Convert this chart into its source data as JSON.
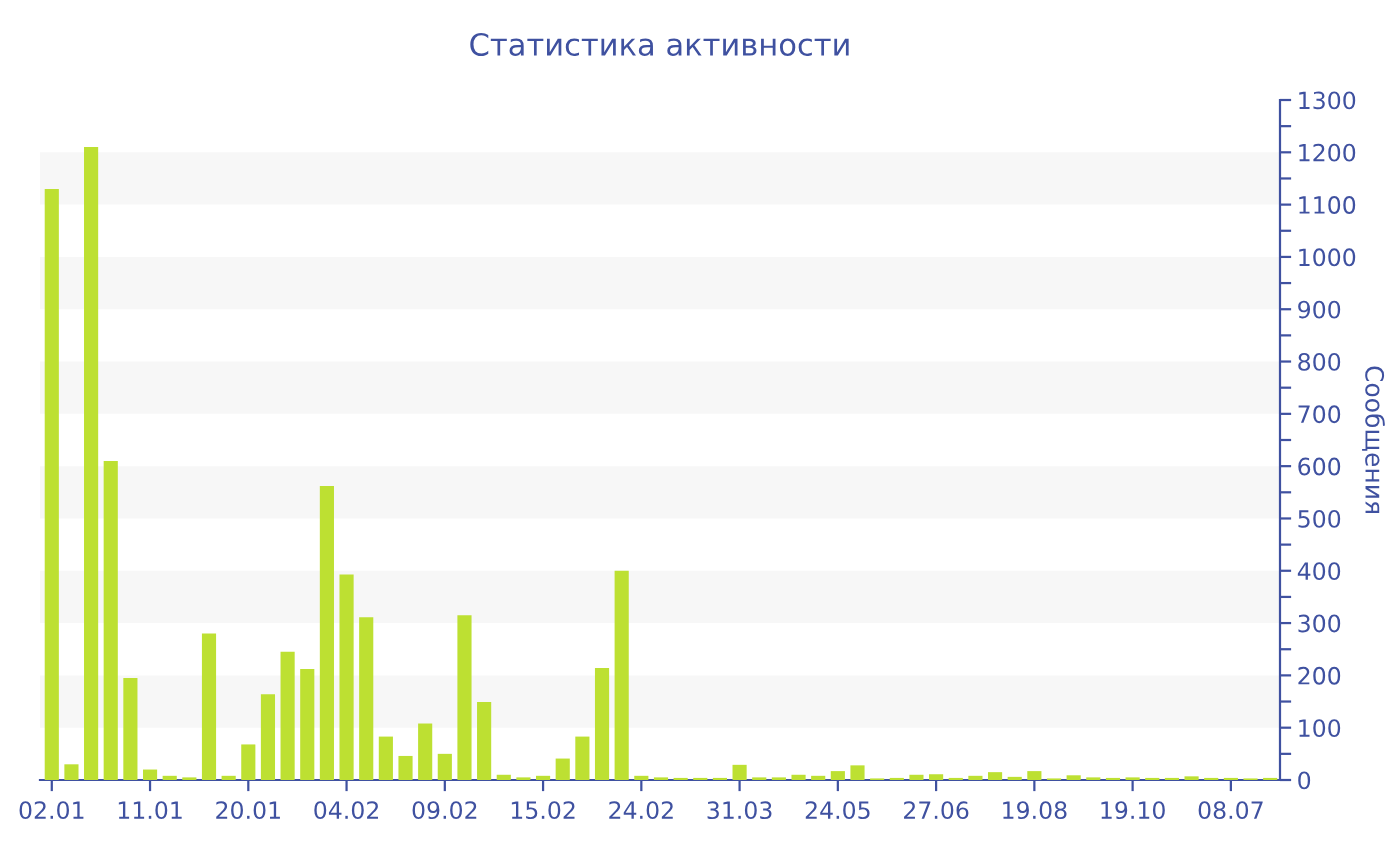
{
  "chart_data": {
    "type": "bar",
    "title": "Статистика активности",
    "ylabel": "Сообщения",
    "categories": [
      "02.01",
      null,
      null,
      null,
      null,
      "11.01",
      null,
      null,
      null,
      null,
      "20.01",
      null,
      null,
      null,
      null,
      "04.02",
      null,
      null,
      null,
      null,
      "09.02",
      null,
      null,
      null,
      null,
      "15.02",
      null,
      null,
      null,
      null,
      "24.02",
      null,
      null,
      null,
      null,
      "31.03",
      null,
      null,
      null,
      null,
      "24.05",
      null,
      null,
      null,
      null,
      "27.06",
      null,
      null,
      null,
      null,
      "19.08",
      null,
      null,
      null,
      null,
      "19.10",
      null,
      null,
      null,
      null,
      "08.07",
      null,
      null
    ],
    "values": [
      1130,
      30,
      1210,
      610,
      195,
      20,
      8,
      5,
      280,
      8,
      68,
      164,
      245,
      212,
      562,
      393,
      311,
      83,
      46,
      108,
      50,
      315,
      149,
      10,
      5,
      8,
      41,
      83,
      214,
      400,
      8,
      5,
      4,
      4,
      4,
      29,
      5,
      5,
      10,
      8,
      17,
      28,
      3,
      4,
      10,
      11,
      4,
      8,
      15,
      6,
      17,
      3,
      9,
      5,
      4,
      5,
      4,
      4,
      7,
      4,
      4,
      3,
      4
    ],
    "color": "#bde032",
    "ylim": [
      0,
      1300
    ],
    "yticks": [
      0,
      {
        "value": 50,
        "label": null
      },
      100,
      {
        "value": 150,
        "label": null
      },
      200,
      {
        "value": 250,
        "label": null
      },
      300,
      {
        "value": 350,
        "label": null
      },
      400,
      {
        "value": 450,
        "label": null
      },
      500,
      {
        "value": 550,
        "label": null
      },
      600,
      {
        "value": 650,
        "label": null
      },
      700,
      {
        "value": 750,
        "label": null
      },
      800,
      {
        "value": 850,
        "label": null
      },
      900,
      {
        "value": 950,
        "label": null
      },
      1000,
      {
        "value": 1050,
        "label": null
      },
      1100,
      {
        "value": 1150,
        "label": null
      },
      1200,
      {
        "value": 1250,
        "label": null
      },
      1300
    ],
    "bands": [
      {
        "axis": "y",
        "from": 100,
        "to": 200,
        "color": "#f7f7f7"
      },
      {
        "axis": "y",
        "from": 300,
        "to": 400,
        "color": "#f7f7f7"
      },
      {
        "axis": "y",
        "from": 500,
        "to": 600,
        "color": "#f7f7f7"
      },
      {
        "axis": "y",
        "from": 700,
        "to": 800,
        "color": "#f7f7f7"
      },
      {
        "axis": "y",
        "from": 900,
        "to": 1000,
        "color": "#f7f7f7"
      },
      {
        "axis": "y",
        "from": 1100,
        "to": 1200,
        "color": "#f7f7f7"
      }
    ],
    "grid": false
  }
}
